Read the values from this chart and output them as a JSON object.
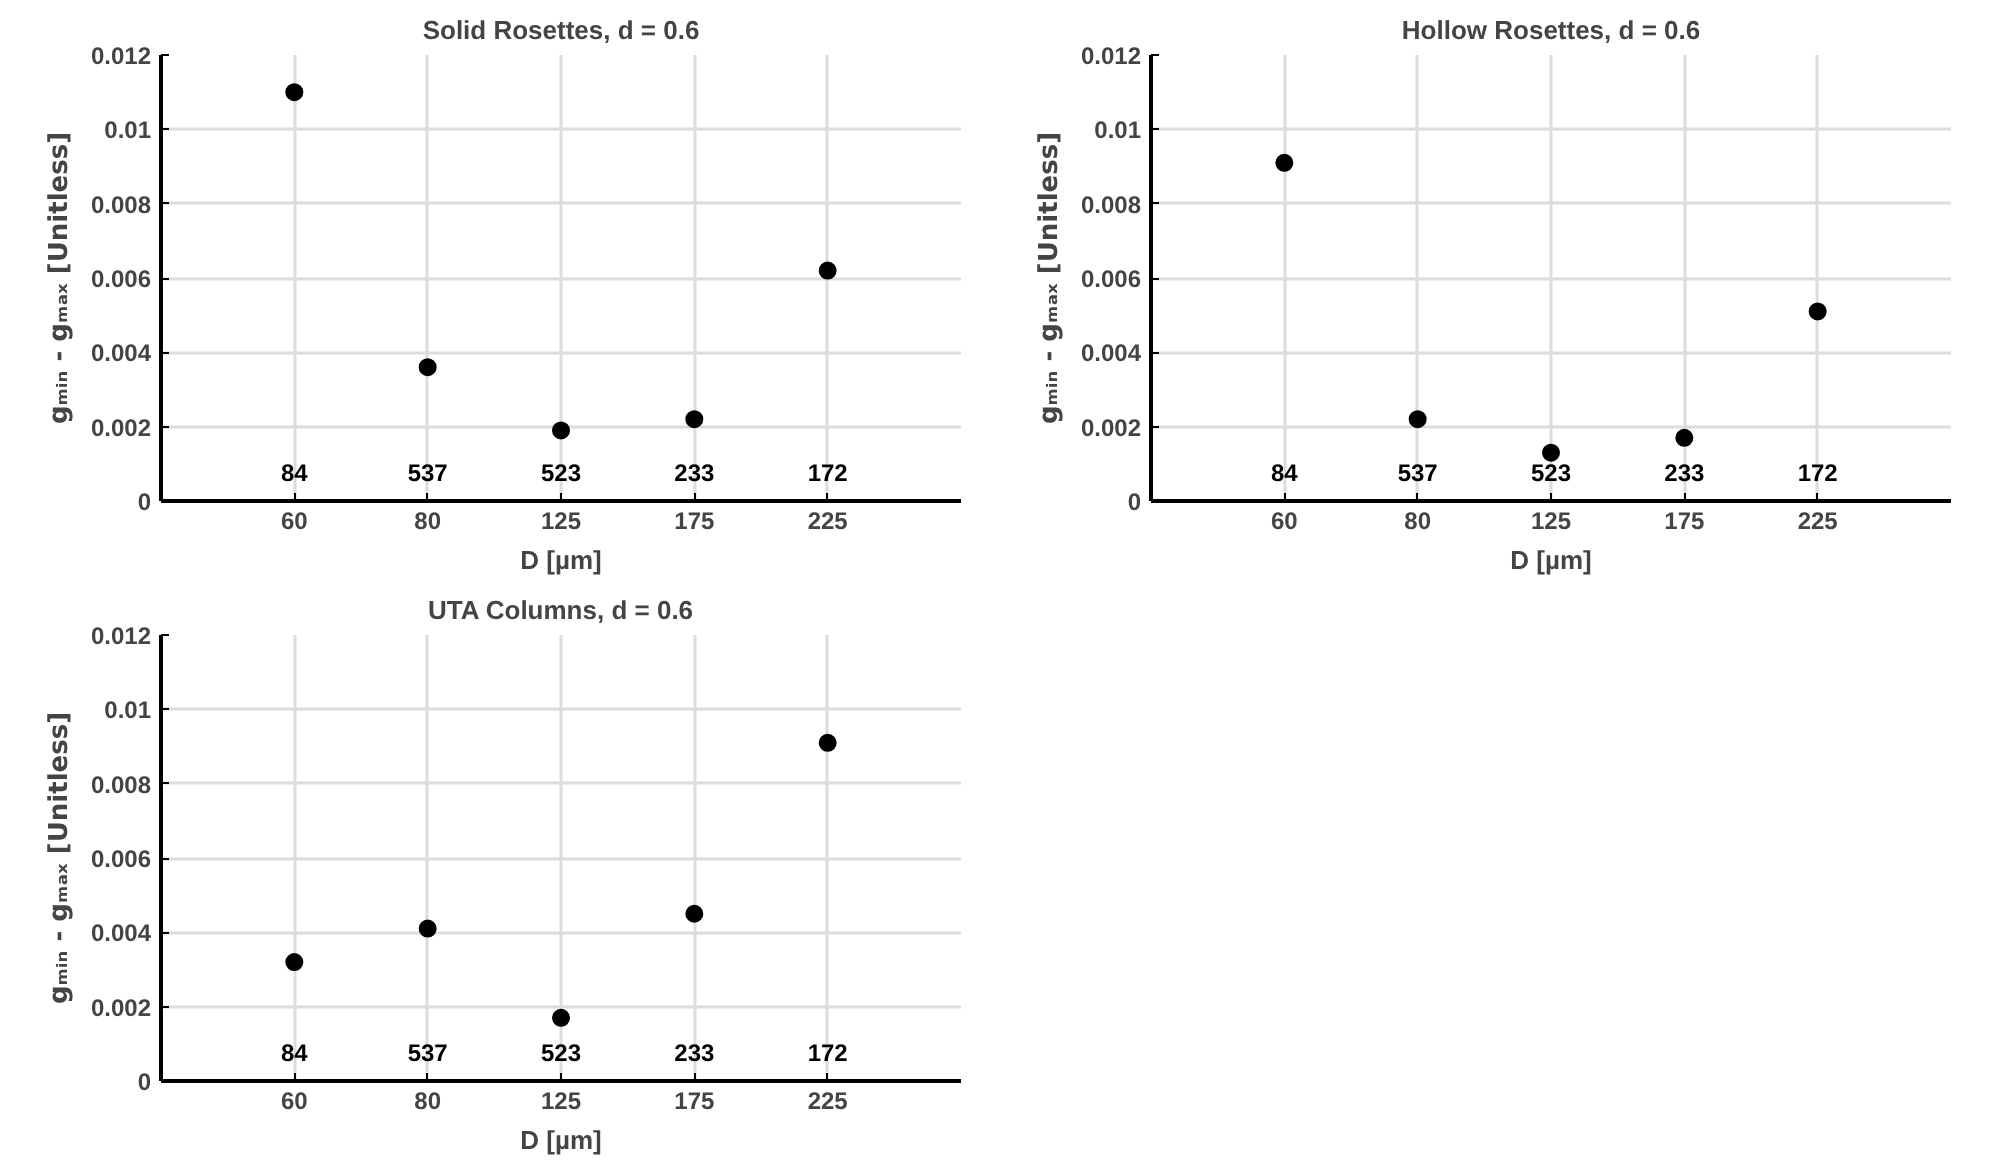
{
  "chart_data": [
    {
      "type": "scatter",
      "title": "Solid Rosettes, d = 0.6",
      "xlabel": "D [µm]",
      "ylabel": "gₘᵢₙ - gₘₐₓ [Unitless]",
      "categories": [
        "60",
        "80",
        "125",
        "175",
        "225"
      ],
      "values": [
        0.011,
        0.0036,
        0.0019,
        0.0022,
        0.0062
      ],
      "color": "#000000",
      "marker": "circle",
      "ylim": [
        0,
        0.012
      ],
      "yticks": [
        0,
        0.002,
        0.004,
        0.006,
        0.008,
        0.01,
        0.012
      ],
      "grid": true,
      "annotations": [
        "84",
        "537",
        "523",
        "233",
        "172"
      ]
    },
    {
      "type": "scatter",
      "title": "Hollow Rosettes, d = 0.6",
      "xlabel": "D [µm]",
      "ylabel": "gₘᵢₙ - gₘₐₓ [Unitless]",
      "categories": [
        "60",
        "80",
        "125",
        "175",
        "225"
      ],
      "values": [
        0.0091,
        0.0022,
        0.0013,
        0.0017,
        0.0051
      ],
      "color": "#000000",
      "marker": "circle",
      "ylim": [
        0,
        0.012
      ],
      "yticks": [
        0,
        0.002,
        0.004,
        0.006,
        0.008,
        0.01,
        0.012
      ],
      "grid": true,
      "annotations": [
        "84",
        "537",
        "523",
        "233",
        "172"
      ]
    },
    {
      "type": "scatter",
      "title": "UTA Columns, d = 0.6",
      "xlabel": "D [µm]",
      "ylabel": "gₘᵢₙ - gₘₐₓ [Unitless]",
      "categories": [
        "60",
        "80",
        "125",
        "175",
        "225"
      ],
      "values": [
        0.0032,
        0.0041,
        0.0017,
        0.0045,
        0.0091
      ],
      "color": "#000000",
      "marker": "circle",
      "ylim": [
        0,
        0.012
      ],
      "yticks": [
        0,
        0.002,
        0.004,
        0.006,
        0.008,
        0.01,
        0.012
      ],
      "grid": true,
      "annotations": [
        "84",
        "537",
        "523",
        "233",
        "172"
      ]
    }
  ]
}
